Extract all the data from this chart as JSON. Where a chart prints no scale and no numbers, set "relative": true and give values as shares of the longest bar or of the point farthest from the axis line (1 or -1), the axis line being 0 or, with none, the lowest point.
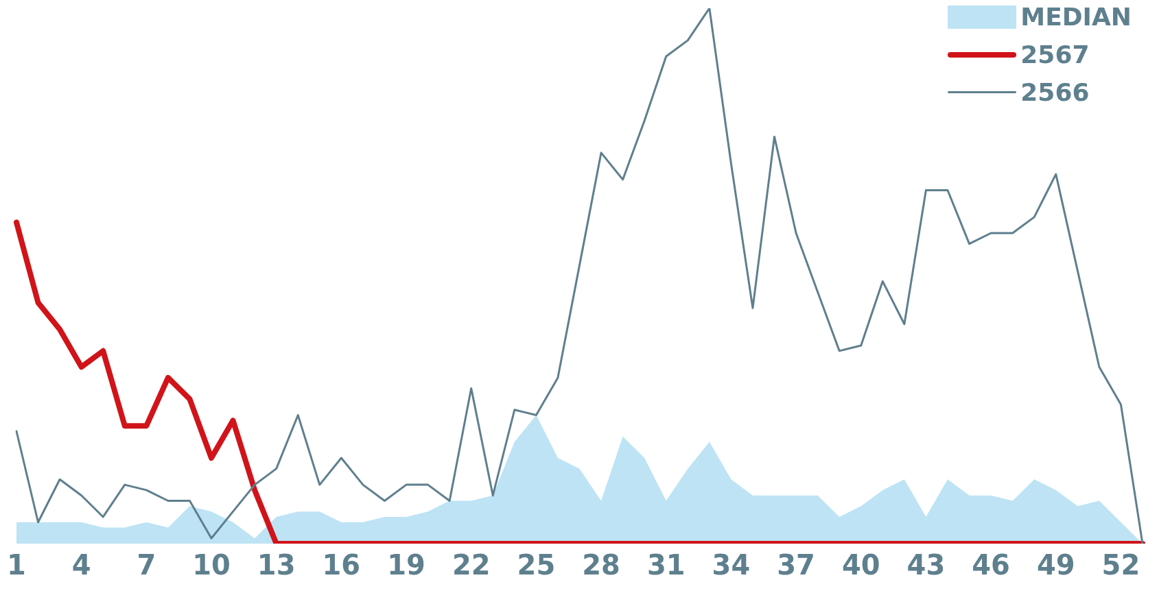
{
  "chart_data": {
    "type": "line",
    "relative": true,
    "grid": false,
    "legend": "top right",
    "marker": "none",
    "categories": [
      "1",
      null,
      null,
      "4",
      null,
      null,
      "7",
      null,
      null,
      "10",
      null,
      null,
      "13",
      null,
      null,
      "16",
      null,
      null,
      "19",
      null,
      null,
      "22",
      null,
      null,
      "25",
      null,
      null,
      "28",
      null,
      null,
      "31",
      null,
      null,
      "34",
      null,
      null,
      "37",
      null,
      null,
      "40",
      null,
      null,
      "43",
      null,
      null,
      "46",
      null,
      null,
      "49",
      null,
      null,
      "52",
      null
    ],
    "series": [
      {
        "name": "MEDIAN",
        "type": "area",
        "color": "#bde3f5",
        "values": [
          0.04,
          0.04,
          0.04,
          0.04,
          0.03,
          0.03,
          0.04,
          0.03,
          0.07,
          0.06,
          0.04,
          0.01,
          0.05,
          0.06,
          0.06,
          0.04,
          0.04,
          0.05,
          0.05,
          0.06,
          0.08,
          0.08,
          0.09,
          0.19,
          0.24,
          0.16,
          0.14,
          0.08,
          0.2,
          0.16,
          0.08,
          0.14,
          0.19,
          0.12,
          0.09,
          0.09,
          0.09,
          0.09,
          0.05,
          0.07,
          0.1,
          0.12,
          0.05,
          0.12,
          0.09,
          0.09,
          0.08,
          0.12,
          0.1,
          0.07,
          0.08,
          0.04,
          0
        ]
      },
      {
        "name": "2567",
        "color": "#d0141a",
        "values": [
          0.6,
          0.45,
          0.4,
          0.33,
          0.36,
          0.22,
          0.22,
          0.31,
          0.27,
          0.16,
          0.23,
          0.1,
          0,
          0,
          0,
          0,
          0,
          0,
          0,
          0,
          0,
          0,
          0,
          0,
          0,
          0,
          0,
          0,
          0,
          0,
          0,
          0,
          0,
          0,
          0,
          0,
          0,
          0,
          0,
          0,
          0,
          0,
          0,
          0,
          0,
          0,
          0,
          0,
          0,
          0,
          0,
          0,
          0
        ]
      },
      {
        "name": "2566",
        "color": "#5e7f8e",
        "values": [
          0.21,
          0.04,
          0.12,
          0.09,
          0.05,
          0.11,
          0.1,
          0.08,
          0.08,
          0.01,
          0.06,
          0.11,
          0.14,
          0.24,
          0.11,
          0.16,
          0.11,
          0.08,
          0.11,
          0.11,
          0.08,
          0.29,
          0.09,
          0.25,
          0.24,
          0.31,
          0.52,
          0.73,
          0.68,
          0.79,
          0.91,
          0.94,
          1,
          0.71,
          0.44,
          0.76,
          0.58,
          0.47,
          0.36,
          0.37,
          0.49,
          0.41,
          0.66,
          0.66,
          0.56,
          0.58,
          0.58,
          0.61,
          0.69,
          0.51,
          0.33,
          0.26,
          0
        ]
      }
    ]
  }
}
